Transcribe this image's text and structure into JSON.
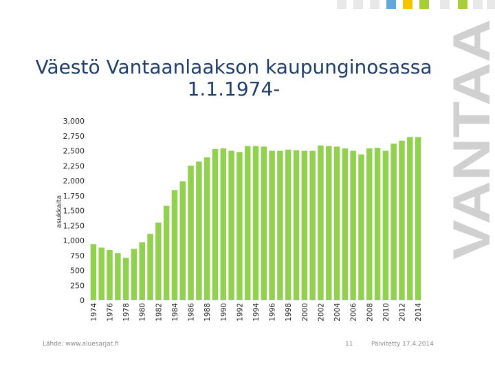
{
  "slide": {
    "title_line1": "Väestö Vantaanlaakson kaupunginosassa",
    "title_line2": "1.1.1974-",
    "brand_text": "VANTAA",
    "source": "Lähde: www.aluesarjat.fi",
    "page_number": "11",
    "updated": "Päivitetty 17.4.2014"
  },
  "colors": {
    "bar": "#92d050",
    "title": "#1f3e67",
    "brand": "#d0d0d0",
    "logo": [
      "#e8e8e8",
      "#e8e8e8",
      "#e8e8e8",
      "#5fa8d8",
      "#f5c400",
      "#a6ce39",
      "#e8e8e8",
      "#a6ce39",
      "#e8e8e8",
      "#e8e8e8"
    ]
  },
  "chart_data": {
    "type": "bar",
    "ylabel": "asukkaita",
    "ylim": [
      0,
      3000
    ],
    "yticks": [
      "0",
      "250",
      "500",
      "750",
      "1,000",
      "1,250",
      "1,500",
      "1,750",
      "2,000",
      "2,250",
      "2,500",
      "2,750",
      "3,000"
    ],
    "xtick_labels": [
      "1974",
      "1976",
      "1978",
      "1980",
      "1982",
      "1984",
      "1986",
      "1988",
      "1990",
      "1992",
      "1994",
      "1996",
      "1998",
      "2000",
      "2002",
      "2004",
      "2006",
      "2008",
      "2010",
      "2012",
      "2014"
    ],
    "categories": [
      "1974",
      "1975",
      "1976",
      "1977",
      "1978",
      "1979",
      "1980",
      "1981",
      "1982",
      "1983",
      "1984",
      "1985",
      "1986",
      "1987",
      "1988",
      "1989",
      "1990",
      "1991",
      "1992",
      "1993",
      "1994",
      "1995",
      "1996",
      "1997",
      "1998",
      "1999",
      "2000",
      "2001",
      "2002",
      "2003",
      "2004",
      "2005",
      "2006",
      "2007",
      "2008",
      "2009",
      "2010",
      "2011",
      "2012",
      "2013",
      "2014"
    ],
    "values": [
      940,
      880,
      840,
      790,
      710,
      860,
      970,
      1110,
      1300,
      1580,
      1840,
      1990,
      2250,
      2320,
      2390,
      2530,
      2540,
      2500,
      2480,
      2580,
      2580,
      2570,
      2500,
      2500,
      2520,
      2510,
      2500,
      2500,
      2590,
      2580,
      2570,
      2540,
      2500,
      2440,
      2540,
      2550,
      2500,
      2620,
      2670,
      2730,
      2730
    ],
    "grid": false
  }
}
